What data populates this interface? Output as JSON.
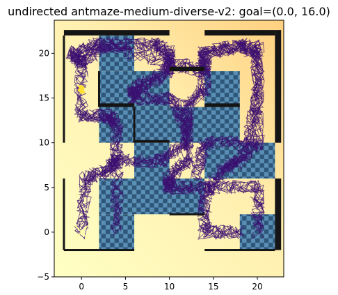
{
  "chart_data": {
    "type": "scatter",
    "title": "undirected antmaze-medium-diverse-v2: goal=(0.0, 16.0)",
    "xlabel": "",
    "ylabel": "",
    "xlim": [
      -3.1,
      23.0
    ],
    "ylim": [
      -5,
      23.7
    ],
    "x_ticks": [
      0,
      5,
      10,
      15,
      20
    ],
    "y_ticks": [
      -5,
      0,
      5,
      10,
      15,
      20
    ],
    "grid": false,
    "legend": "none",
    "maze": {
      "cell_size": 4,
      "origin_x": -2,
      "origin_y": -2,
      "layout_top_to_bottom": [
        "#.####",
        "#..#.#",
        "#....#",
        "##.#..",
        "#...##",
        "#.###."
      ]
    },
    "walls_extra": [
      {
        "x1": -2,
        "y1": 22,
        "x2": 10,
        "y2": 22.6
      },
      {
        "x1": 14,
        "y1": 22,
        "x2": 22,
        "y2": 22.6
      },
      {
        "x1": 10,
        "y1": 18,
        "x2": 14,
        "y2": 18.5
      },
      {
        "x1": 22,
        "y1": 10,
        "x2": 22.7,
        "y2": 22.6
      },
      {
        "x1": 22,
        "y1": -2,
        "x2": 22.7,
        "y2": 6
      },
      {
        "x1": 2,
        "y1": 14,
        "x2": 6,
        "y2": 14.4
      },
      {
        "x1": 6,
        "y1": 10,
        "x2": 10,
        "y2": 10.3
      },
      {
        "x1": 14,
        "y1": 14,
        "x2": 18,
        "y2": 14.4
      }
    ],
    "trajectory_corridors": [
      [
        [
          0,
          0
        ],
        [
          0.5,
          6
        ],
        [
          3,
          7
        ],
        [
          4,
          8
        ],
        [
          4,
          12
        ],
        [
          3,
          13
        ],
        [
          0,
          13
        ],
        [
          0,
          19
        ],
        [
          3,
          21
        ],
        [
          8,
          21
        ],
        [
          10,
          20
        ],
        [
          10,
          18
        ],
        [
          8,
          17
        ],
        [
          6,
          16
        ],
        [
          6,
          15
        ],
        [
          10,
          15
        ],
        [
          12,
          12
        ],
        [
          12,
          8
        ],
        [
          10,
          6
        ],
        [
          10,
          5
        ],
        [
          14,
          5
        ],
        [
          20,
          5
        ],
        [
          20,
          0
        ]
      ],
      [
        [
          4,
          0
        ],
        [
          4,
          8
        ],
        [
          9,
          8
        ],
        [
          12,
          10
        ],
        [
          12,
          14
        ],
        [
          14,
          16
        ],
        [
          14,
          20
        ],
        [
          18,
          21
        ],
        [
          20,
          20
        ],
        [
          20,
          10
        ],
        [
          18,
          8
        ],
        [
          16,
          7
        ],
        [
          14,
          4
        ],
        [
          14,
          0
        ],
        [
          18,
          0
        ]
      ],
      [
        [
          0,
          19
        ],
        [
          -1,
          20
        ],
        [
          2,
          21
        ],
        [
          10,
          19
        ],
        [
          14,
          18
        ],
        [
          14,
          20
        ],
        [
          20,
          21
        ],
        [
          20,
          15
        ],
        [
          19,
          10
        ],
        [
          14,
          10
        ],
        [
          13,
          6
        ]
      ]
    ],
    "goal": {
      "x": 0.0,
      "y": 16.0,
      "color": "#ffe030"
    },
    "start_marker": {
      "x": 0.0,
      "y": 0.0,
      "shape": "x",
      "color": "#ffff99"
    },
    "colors": {
      "trajectory": "#3b0f70",
      "floor_light": "#5a8fb5",
      "floor_dark": "#2e5678",
      "wall": "#151515",
      "background_low": "#ffffc4",
      "background_high": "#ffd080"
    }
  }
}
